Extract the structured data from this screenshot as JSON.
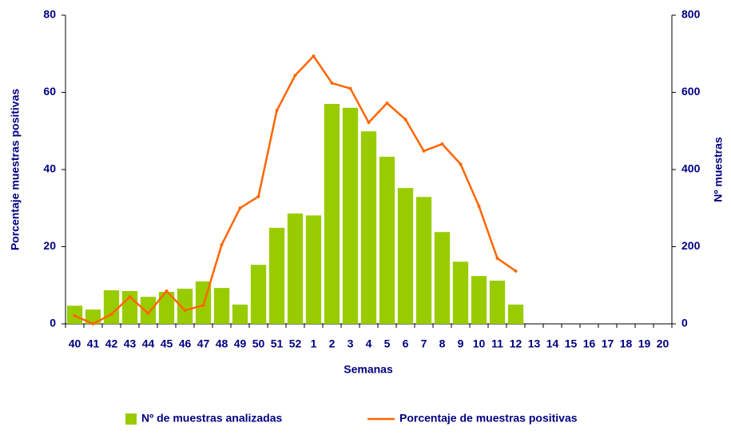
{
  "chart_data": {
    "type": "bar",
    "x_label": "Semanas",
    "y_label": "Porcentaje muestras  positivas",
    "y2_label": "Nº muestras",
    "categories": [
      "40",
      "41",
      "42",
      "43",
      "44",
      "45",
      "46",
      "47",
      "48",
      "49",
      "50",
      "51",
      "52",
      "1",
      "2",
      "3",
      "4",
      "5",
      "6",
      "7",
      "8",
      "9",
      "10",
      "11",
      "12",
      "13",
      "14",
      "15",
      "16",
      "17",
      "18",
      "19",
      "20"
    ],
    "series": [
      {
        "name": "Nº de muestras analizadas",
        "type": "bar",
        "axis": "y2",
        "color": "#99cc00",
        "values": [
          47,
          37,
          87,
          85,
          70,
          83,
          91,
          110,
          93,
          50,
          153,
          249,
          286,
          281,
          570,
          560,
          499,
          433,
          352,
          329,
          238,
          161,
          124,
          112,
          50,
          null,
          null,
          null,
          null,
          null,
          null,
          null,
          null
        ]
      },
      {
        "name": "Porcentaje de muestras positivas",
        "type": "line",
        "color": "#ff6600",
        "values": [
          2.1,
          0,
          2.5,
          7,
          2.7,
          8.5,
          3.5,
          4.8,
          20.5,
          30,
          33,
          55.3,
          64.4,
          69.4,
          62.4,
          61,
          52.2,
          57.2,
          53,
          44.8,
          46.6,
          41.4,
          30.5,
          17,
          13.7,
          null,
          null,
          null,
          null,
          null,
          null,
          null,
          null
        ]
      }
    ],
    "ylim": [
      0,
      80
    ],
    "yticks": [
      0,
      20,
      40,
      60,
      80
    ],
    "y2lim": [
      0,
      800
    ],
    "y2ticks": [
      0,
      200,
      400,
      600,
      800
    ],
    "legend": "bottom"
  }
}
